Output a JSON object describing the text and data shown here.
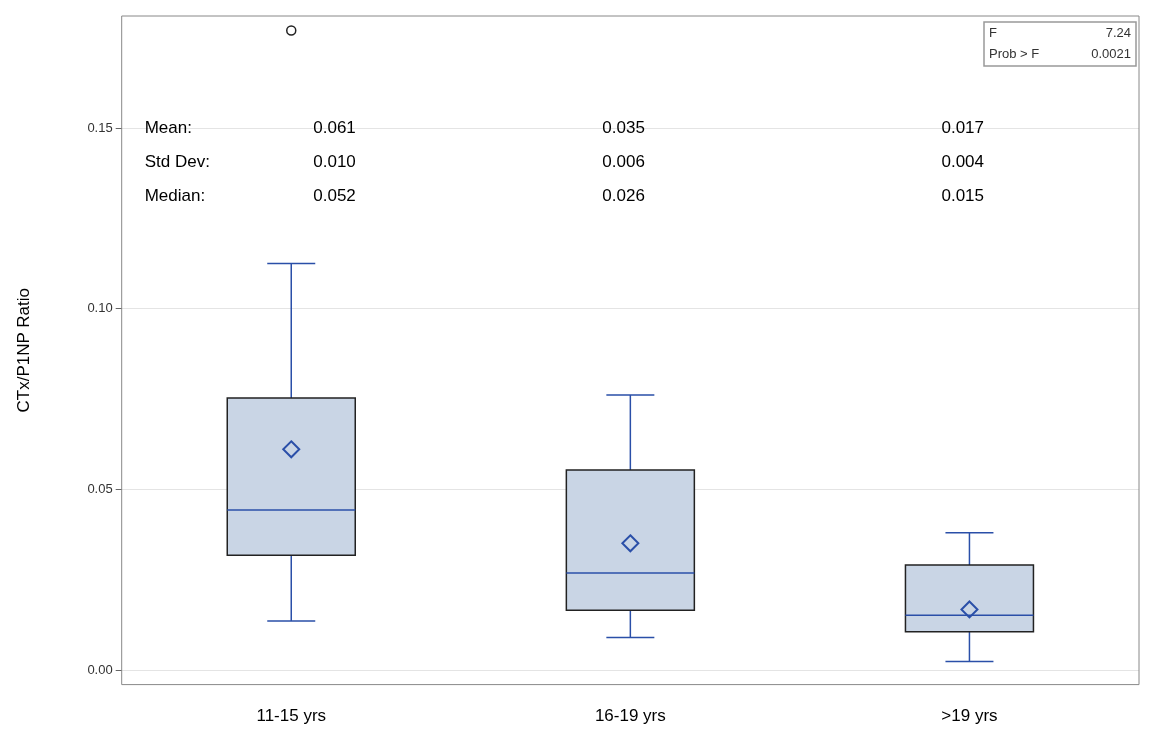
{
  "chart_data": {
    "type": "box",
    "ylabel": "CTx/P1NP Ratio",
    "categories": [
      "11-15 yrs",
      "16-19 yrs",
      ">19 yrs"
    ],
    "boxes": [
      {
        "low": 0.0136,
        "q1": 0.0318,
        "median": 0.0443,
        "q3": 0.0753,
        "high": 0.1125,
        "mean": 0.0611,
        "outliers": [
          0.177
        ]
      },
      {
        "low": 0.009,
        "q1": 0.0166,
        "median": 0.0269,
        "q3": 0.0554,
        "high": 0.0761,
        "mean": 0.0351
      },
      {
        "low": 0.0024,
        "q1": 0.0106,
        "median": 0.0152,
        "q3": 0.0291,
        "high": 0.038,
        "mean": 0.0168
      }
    ],
    "color": "#c9d5e5",
    "ylim": [
      -0.004,
      0.181
    ],
    "yticks": [
      {
        "value": 0,
        "label": "0.00"
      },
      {
        "value": 0.05,
        "label": "0.05"
      },
      {
        "value": 0.1,
        "label": "0.10"
      },
      {
        "value": 0.15,
        "label": "0.15"
      }
    ],
    "grid": "y",
    "marker": "diamond",
    "legend": false,
    "annotations": [
      "Mean:",
      "Std Dev:",
      "Median:",
      "0.061",
      "0.010",
      "0.052",
      "0.035",
      "0.006",
      "0.026",
      "0.017",
      "0.004",
      "0.015",
      "F",
      "7.24",
      "Prob > F",
      "0.0021"
    ]
  }
}
